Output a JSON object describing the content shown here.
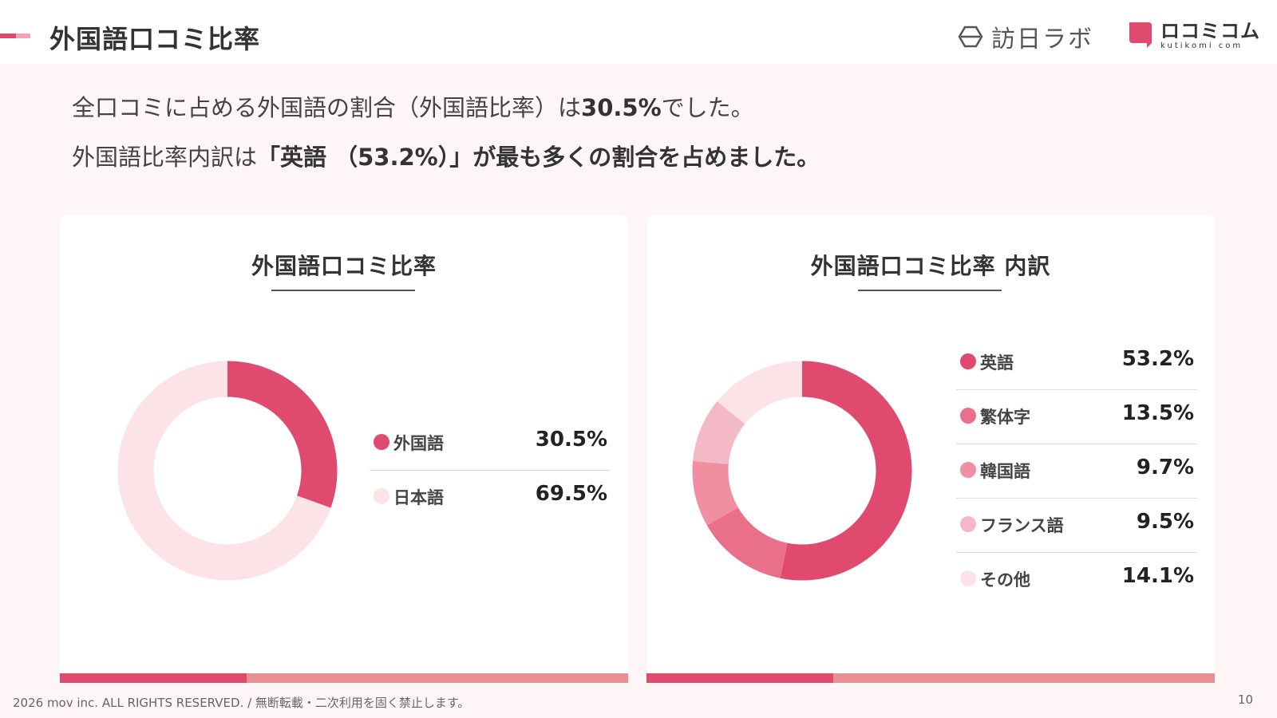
{
  "header": {
    "title": "外国語口コミ比率",
    "logo_houni": "訪日ラボ",
    "logo_kuchi_main": "ロコミコム",
    "logo_kuchi_sub": "kutikomi com"
  },
  "lead": {
    "line1_prefix": "全口コミに占める外国語の割合（外国語比率）は",
    "line1_value": "30.5%",
    "line1_suffix": "でした。",
    "line2_prefix": "外国語比率内訳は",
    "line2_bold": "「英語 （53.2%）」が最も多くの割合を占めました。"
  },
  "footer": {
    "copyright": "2026 mov inc. ALL RIGHTS RESERVED. / 無断転載・二次利用を固く禁止します。",
    "page_number": "10"
  },
  "colors": {
    "accent": "#e04a6e",
    "accent_light": "#e98e93",
    "background": "#fdf5f6"
  },
  "chart_data": [
    {
      "type": "pie",
      "title": "外国語口コミ比率",
      "categories": [
        "外国語",
        "日本語"
      ],
      "values": [
        30.5,
        69.5
      ],
      "value_labels": [
        "30.5%",
        "69.5%"
      ],
      "colors": [
        "#e04a6e",
        "#fce3e8"
      ],
      "legend": "right"
    },
    {
      "type": "pie",
      "title": "外国語口コミ比率 内訳",
      "categories": [
        "英語",
        "繁体字",
        "韓国語",
        "フランス語",
        "その他"
      ],
      "values": [
        53.2,
        13.5,
        9.7,
        9.5,
        14.1
      ],
      "value_labels": [
        "53.2%",
        "13.5%",
        "9.7%",
        "9.5%",
        "14.1%"
      ],
      "colors": [
        "#e04a6e",
        "#ea6f8a",
        "#f08ea2",
        "#f4b9c6",
        "#fce3e8"
      ],
      "legend": "right"
    }
  ]
}
